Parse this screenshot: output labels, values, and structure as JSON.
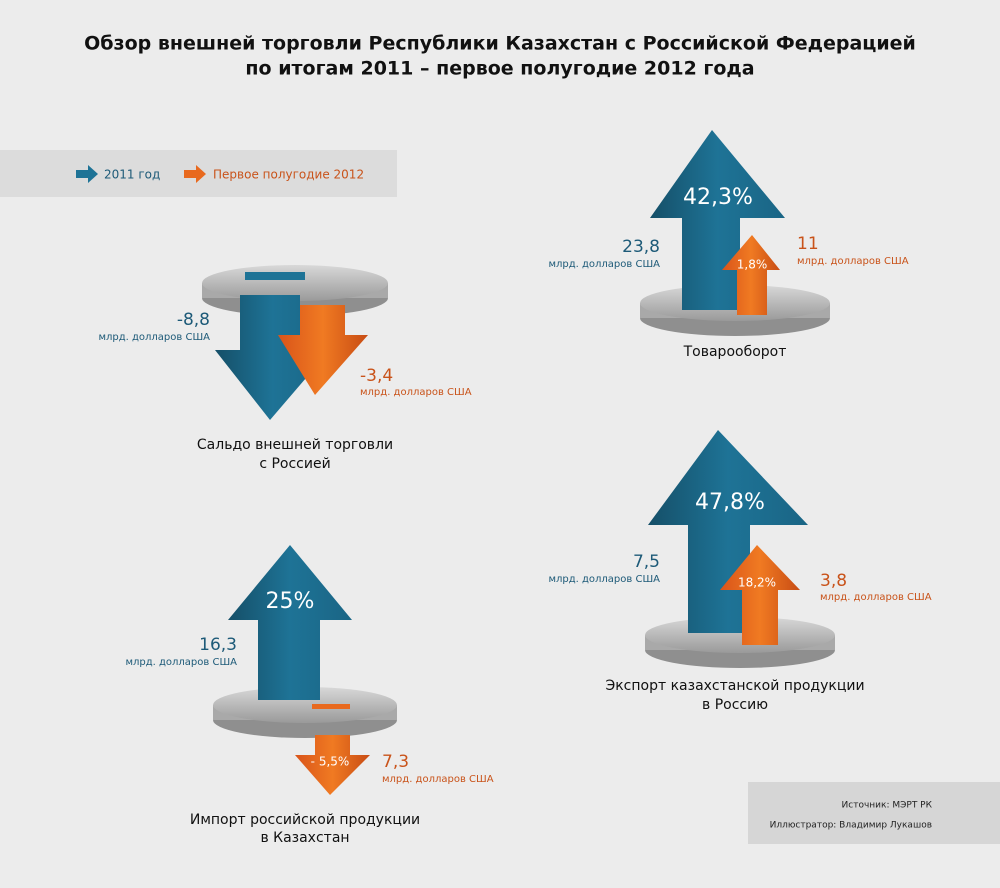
{
  "title": [
    "Обзор внешней торговли Республики Казахстан с Российской Федерацией",
    "по итогам 2011 – первое полугодие 2012 года"
  ],
  "legend": [
    "2011 год",
    "Первое полугодие 2012"
  ],
  "panels": [
    {
      "label": [
        "Сальдо внешней торговли",
        "с Россией"
      ],
      "value_2011": "-8,8",
      "unit_2011": "млрд. долларов США",
      "value_2012": "-3,4",
      "unit_2012": "млрд. долларов США"
    },
    {
      "label": [
        "Товарооборот"
      ],
      "value_2011": "23,8",
      "unit_2011": "млрд. долларов США",
      "value_2012": "11",
      "unit_2012": "млрд. долларов США",
      "growth_2011": "42,3%",
      "growth_2012": "1,8%"
    },
    {
      "label": [
        "Импорт российской продукции",
        "в Казахстан"
      ],
      "value_2011": "16,3",
      "unit_2011": "млрд. долларов США",
      "value_2012": "7,3",
      "unit_2012": "млрд. долларов США",
      "growth_2011": "25%",
      "growth_2012": "- 5,5%"
    },
    {
      "label": [
        "Экспорт казахстанской продукции",
        "в Россию"
      ],
      "value_2011": "7,5",
      "unit_2011": "млрд. долларов США",
      "value_2012": "3,8",
      "unit_2012": "млрд. долларов США",
      "growth_2011": "47,8%",
      "growth_2012": "18,2%"
    }
  ],
  "source": "Источник: МЭРТ РК",
  "illustrator": "Иллюстратор: Владимир Лукашов"
}
